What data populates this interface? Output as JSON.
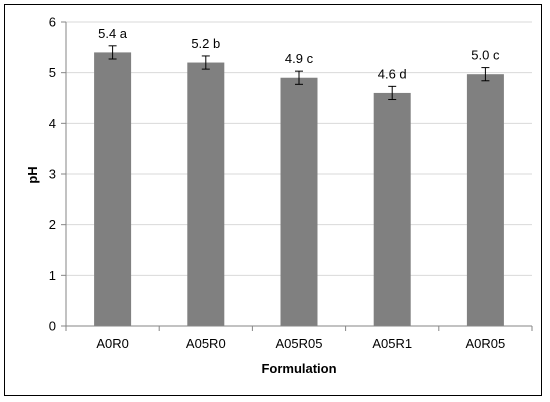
{
  "chart_data": {
    "type": "bar",
    "title": "",
    "xlabel": "Formulation",
    "ylabel": "pH",
    "categories": [
      "A0R0",
      "A05R0",
      "A05R05",
      "A05R1",
      "A0R05"
    ],
    "values": [
      5.4,
      5.2,
      4.9,
      4.6,
      4.97
    ],
    "errors": [
      0.13,
      0.13,
      0.13,
      0.13,
      0.13
    ],
    "data_labels": [
      "5.4 a",
      "5.2 b",
      "4.9 c",
      "4.6 d",
      "5.0 c"
    ],
    "ylim": [
      0,
      6
    ],
    "yticks": [
      0,
      1,
      2,
      3,
      4,
      5,
      6
    ],
    "grid": "horizontal",
    "legend": "none",
    "bar_color": "#808080",
    "grid_color": "#d9d9d9",
    "axis_color": "#868686"
  }
}
